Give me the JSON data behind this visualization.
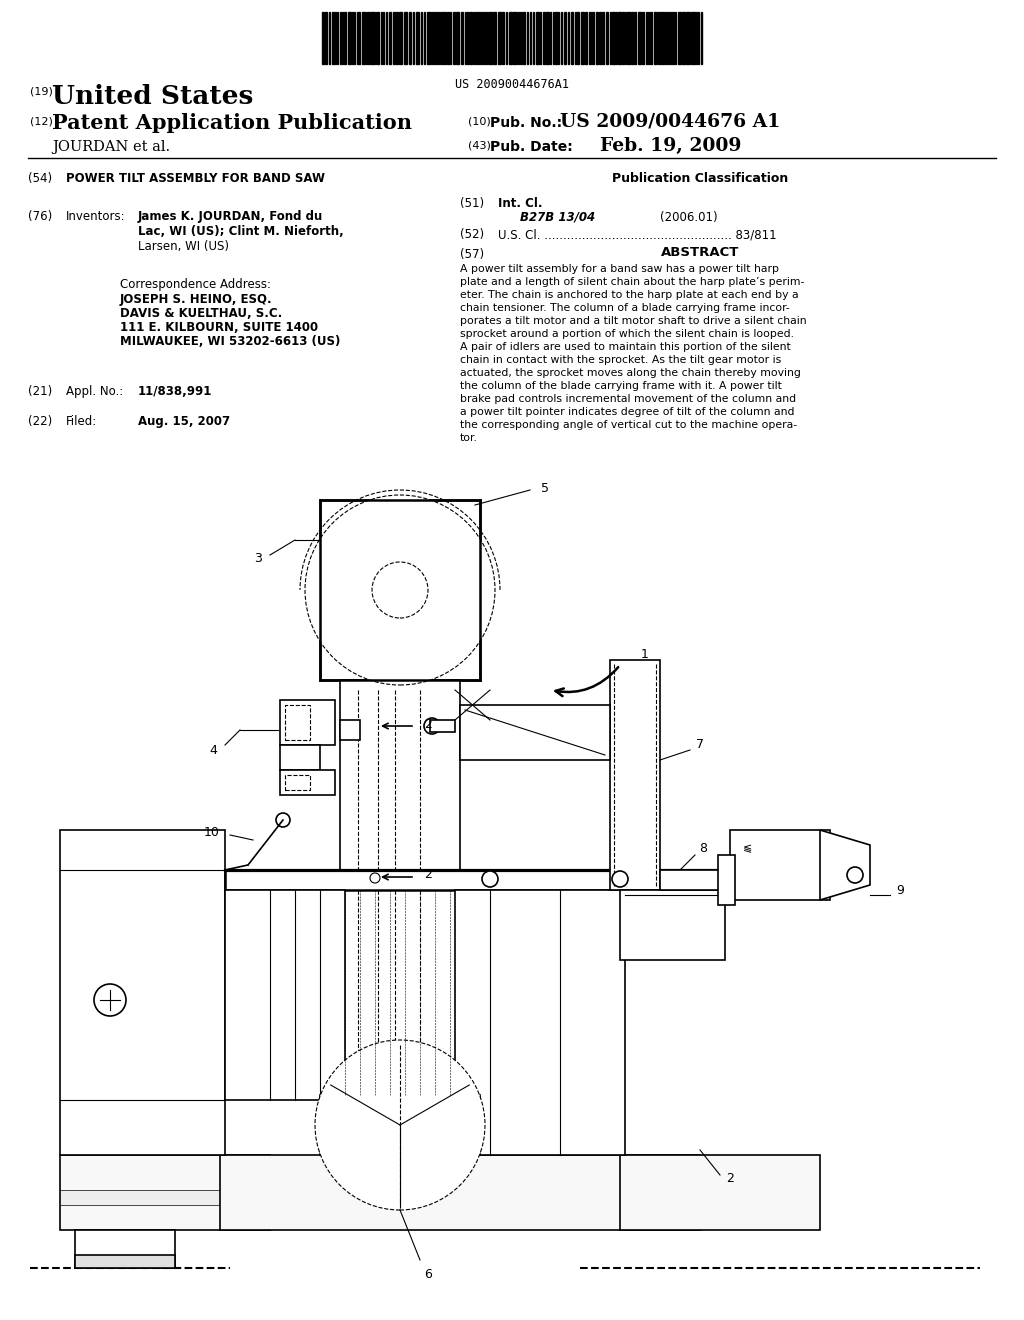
{
  "bg_color": "#ffffff",
  "barcode_text": "US 20090044676A1",
  "label_19": "(19)",
  "united_states": "United States",
  "label_12": "(12)",
  "patent_app_pub": "Patent Application Publication",
  "label_10": "(10)",
  "pub_no_label": "Pub. No.:",
  "pub_no_value": "US 2009/0044676 A1",
  "inventors_name": "JOURDAN et al.",
  "label_43": "(43)",
  "pub_date_label": "Pub. Date:",
  "pub_date_value": "Feb. 19, 2009",
  "label_54": "(54)",
  "title": "POWER TILT ASSEMBLY FOR BAND SAW",
  "pub_class_header": "Publication Classification",
  "label_51": "(51)",
  "int_cl_label": "Int. Cl.",
  "int_cl_value": "B27B 13/04",
  "int_cl_year": "(2006.01)",
  "label_52": "(52)",
  "us_cl_label": "U.S. Cl.",
  "us_cl_value": "83/811",
  "label_57": "(57)",
  "abstract_header": "ABSTRACT",
  "abstract_lines": [
    "A power tilt assembly for a band saw has a power tilt harp",
    "plate and a length of silent chain about the harp plate’s perim-",
    "eter. The chain is anchored to the harp plate at each end by a",
    "chain tensioner. The column of a blade carrying frame incor-",
    "porates a tilt motor and a tilt motor shaft to drive a silent chain",
    "sprocket around a portion of which the silent chain is looped.",
    "A pair of idlers are used to maintain this portion of the silent",
    "chain in contact with the sprocket. As the tilt gear motor is",
    "actuated, the sprocket moves along the chain thereby moving",
    "the column of the blade carrying frame with it. A power tilt",
    "brake pad controls incremental movement of the column and",
    "a power tilt pointer indicates degree of tilt of the column and",
    "the corresponding angle of vertical cut to the machine opera-",
    "tor."
  ],
  "label_76": "(76)",
  "inventors_label": "Inventors:",
  "inventor1": "James K. JOURDAN, Fond du",
  "inventor2": "Lac, WI (US); Clint M. Nieforth,",
  "inventor3": "Larsen, WI (US)",
  "corr_address_label": "Correspondence Address:",
  "corr_line1": "JOSEPH S. HEINO, ESQ.",
  "corr_line2": "DAVIS & KUELTHAU, S.C.",
  "corr_line3": "111 E. KILBOURN, SUITE 1400",
  "corr_line4": "MILWAUKEE, WI 53202-6613 (US)",
  "label_21": "(21)",
  "appl_no_label": "Appl. No.:",
  "appl_no_value": "11/838,991",
  "label_22": "(22)",
  "filed_label": "Filed:",
  "filed_value": "Aug. 15, 2007",
  "text_color": "#000000"
}
